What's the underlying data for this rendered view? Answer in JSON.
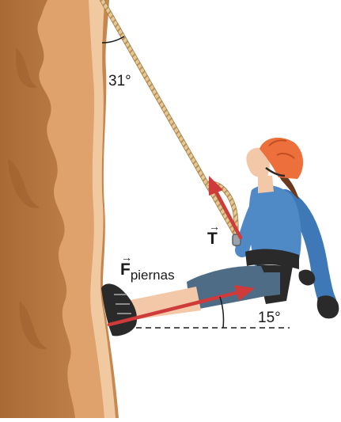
{
  "diagram": {
    "rope_angle_label": "31°",
    "leg_angle_label": "15°",
    "tension_vector": {
      "symbol": "T"
    },
    "leg_force_vector": {
      "symbol": "F",
      "subscript": "piernas"
    }
  },
  "colors": {
    "cliff_dark": "#b7773f",
    "cliff_light": "#e4a874",
    "cliff_highlight": "#f3cfa7",
    "rope": "#e8c892",
    "vector": "#cf3a3a",
    "helmet": "#ec6f3c",
    "shirt": "#4f8ac7",
    "pants": "#4f6c86",
    "skin": "#f3c8a9",
    "harness": "#2a2a2a"
  },
  "icons": [
    "helmet-icon",
    "glove-icon",
    "shoe-icon",
    "carabiner-icon"
  ]
}
